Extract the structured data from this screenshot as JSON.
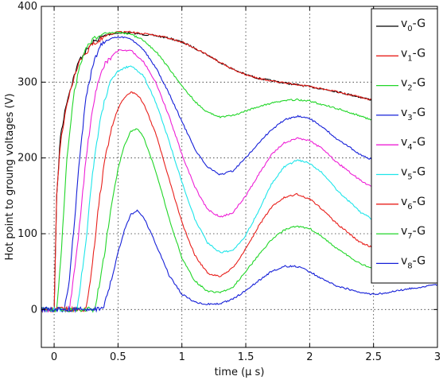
{
  "chart_data": {
    "type": "line",
    "xlabel": "time (μ s)",
    "ylabel": "Hot point to groung voltages (V)",
    "xlim": [
      -0.1,
      3.0
    ],
    "ylim": [
      -50,
      400
    ],
    "xticks": [
      0,
      0.5,
      1,
      1.5,
      2,
      2.5,
      3
    ],
    "xtick_labels": [
      "0",
      "0.5",
      "1",
      "1.5",
      "2",
      "2.5",
      "3"
    ],
    "yticks": [
      0,
      100,
      200,
      300,
      400
    ],
    "ytick_labels": [
      "0",
      "100",
      "200",
      "300",
      "400"
    ],
    "grid": true,
    "legend_position": "top-right",
    "series": [
      {
        "name": "v0-G",
        "label_main": "v",
        "label_sub": "0",
        "label_suffix": "-G",
        "color": "#000000",
        "x": [
          -0.1,
          0,
          0.02,
          0.05,
          0.1,
          0.15,
          0.2,
          0.3,
          0.4,
          0.5,
          0.6,
          0.7,
          0.8,
          0.9,
          1.0,
          1.1,
          1.2,
          1.3,
          1.4,
          1.5,
          1.6,
          1.8,
          2.0,
          2.2,
          2.4,
          2.6,
          2.8,
          3.0
        ],
        "y": [
          0,
          0,
          150,
          230,
          275,
          305,
          330,
          352,
          362,
          365,
          365,
          363,
          361,
          358,
          353,
          345,
          336,
          326,
          317,
          310,
          305,
          299,
          294,
          288,
          280,
          272,
          262,
          252
        ]
      },
      {
        "name": "v1-G",
        "label_main": "v",
        "label_sub": "1",
        "label_suffix": "-G",
        "color": "#e8201c",
        "x": [
          -0.1,
          0,
          0.02,
          0.05,
          0.1,
          0.15,
          0.2,
          0.3,
          0.4,
          0.5,
          0.6,
          0.7,
          0.8,
          0.9,
          1.0,
          1.1,
          1.2,
          1.3,
          1.4,
          1.5,
          1.6,
          1.8,
          2.0,
          2.2,
          2.4,
          2.6,
          2.8,
          3.0
        ],
        "y": [
          0,
          0,
          150,
          220,
          272,
          302,
          328,
          350,
          361,
          366,
          366,
          364,
          362,
          358,
          353,
          345,
          336,
          326,
          317,
          310,
          305,
          299,
          294,
          288,
          280,
          272,
          262,
          252
        ]
      },
      {
        "name": "v2-G",
        "label_main": "v",
        "label_sub": "2",
        "label_suffix": "-G",
        "color": "#21d628",
        "x": [
          -0.1,
          0.02,
          0.05,
          0.1,
          0.15,
          0.2,
          0.25,
          0.3,
          0.4,
          0.5,
          0.6,
          0.7,
          0.8,
          0.9,
          1.0,
          1.1,
          1.2,
          1.3,
          1.4,
          1.5,
          1.6,
          1.8,
          1.9,
          2.0,
          2.2,
          2.4,
          2.6,
          2.8,
          3.0
        ],
        "y": [
          0,
          0,
          60,
          200,
          280,
          320,
          345,
          357,
          365,
          366,
          363,
          355,
          340,
          318,
          295,
          275,
          260,
          254,
          256,
          262,
          268,
          276,
          277,
          275,
          266,
          255,
          243,
          232,
          222
        ]
      },
      {
        "name": "v3-G",
        "label_main": "v",
        "label_sub": "3",
        "label_suffix": "-G",
        "color": "#1620d8",
        "x": [
          -0.1,
          0.08,
          0.12,
          0.2,
          0.25,
          0.3,
          0.35,
          0.4,
          0.5,
          0.6,
          0.7,
          0.8,
          0.9,
          1.0,
          1.1,
          1.2,
          1.3,
          1.4,
          1.5,
          1.6,
          1.7,
          1.8,
          1.9,
          2.0,
          2.1,
          2.2,
          2.4,
          2.6,
          2.8,
          3.0
        ],
        "y": [
          0,
          0,
          40,
          200,
          280,
          320,
          345,
          355,
          360,
          357,
          343,
          318,
          285,
          248,
          212,
          188,
          178,
          183,
          200,
          220,
          237,
          250,
          255,
          252,
          241,
          227,
          204,
          190,
          182,
          176
        ]
      },
      {
        "name": "v4-G",
        "label_main": "v",
        "label_sub": "4",
        "label_suffix": "-G",
        "color": "#ee20d6",
        "x": [
          -0.1,
          0.12,
          0.18,
          0.25,
          0.3,
          0.35,
          0.4,
          0.5,
          0.6,
          0.7,
          0.8,
          0.9,
          1.0,
          1.1,
          1.2,
          1.3,
          1.4,
          1.5,
          1.6,
          1.7,
          1.8,
          1.9,
          2.0,
          2.1,
          2.2,
          2.4,
          2.6,
          2.8,
          3.0
        ],
        "y": [
          0,
          0,
          80,
          200,
          265,
          305,
          325,
          342,
          342,
          327,
          298,
          255,
          205,
          162,
          132,
          122,
          128,
          150,
          178,
          204,
          220,
          226,
          223,
          212,
          196,
          170,
          152,
          140,
          134
        ]
      },
      {
        "name": "v5-G",
        "label_main": "v",
        "label_sub": "5",
        "label_suffix": "-G",
        "color": "#1ee5ea",
        "x": [
          -0.1,
          0.18,
          0.25,
          0.3,
          0.35,
          0.4,
          0.45,
          0.5,
          0.6,
          0.7,
          0.8,
          0.9,
          1.0,
          1.1,
          1.2,
          1.3,
          1.4,
          1.5,
          1.6,
          1.7,
          1.8,
          1.9,
          2.0,
          2.1,
          2.2,
          2.4,
          2.6,
          2.8,
          3.0
        ],
        "y": [
          0,
          0,
          90,
          180,
          240,
          280,
          303,
          315,
          322,
          308,
          272,
          222,
          168,
          120,
          88,
          75,
          78,
          98,
          130,
          165,
          188,
          197,
          193,
          180,
          160,
          128,
          108,
          98,
          94
        ]
      },
      {
        "name": "v6-G",
        "label_main": "v",
        "label_sub": "6",
        "label_suffix": "-G",
        "color": "#e8201c",
        "x": [
          -0.1,
          0.25,
          0.3,
          0.35,
          0.4,
          0.45,
          0.5,
          0.55,
          0.6,
          0.65,
          0.7,
          0.8,
          0.9,
          1.0,
          1.1,
          1.2,
          1.3,
          1.4,
          1.5,
          1.6,
          1.7,
          1.8,
          1.9,
          2.0,
          2.1,
          2.2,
          2.4,
          2.6,
          2.8,
          3.0
        ],
        "y": [
          0,
          0,
          60,
          140,
          200,
          240,
          265,
          280,
          287,
          284,
          272,
          230,
          172,
          115,
          72,
          48,
          43,
          55,
          80,
          110,
          135,
          148,
          152,
          146,
          132,
          115,
          88,
          75,
          68,
          64
        ]
      },
      {
        "name": "v7-G",
        "label_main": "v",
        "label_sub": "7",
        "label_suffix": "-G",
        "color": "#21d628",
        "x": [
          -0.1,
          0.32,
          0.4,
          0.45,
          0.5,
          0.55,
          0.6,
          0.65,
          0.7,
          0.8,
          0.9,
          1.0,
          1.1,
          1.2,
          1.3,
          1.4,
          1.5,
          1.6,
          1.7,
          1.8,
          1.9,
          2.0,
          2.1,
          2.2,
          2.4,
          2.6,
          2.8,
          3.0
        ],
        "y": [
          0,
          0,
          80,
          140,
          185,
          217,
          235,
          238,
          228,
          180,
          120,
          68,
          38,
          24,
          22,
          30,
          50,
          72,
          92,
          105,
          110,
          107,
          96,
          82,
          60,
          48,
          43,
          40
        ]
      },
      {
        "name": "v8-G",
        "label_main": "v",
        "label_sub": "8",
        "label_suffix": "-G",
        "color": "#1620d8",
        "x": [
          -0.1,
          0.38,
          0.45,
          0.5,
          0.55,
          0.6,
          0.65,
          0.7,
          0.8,
          0.9,
          1.0,
          1.1,
          1.2,
          1.3,
          1.4,
          1.5,
          1.6,
          1.7,
          1.8,
          1.9,
          2.0,
          2.1,
          2.2,
          2.4,
          2.5,
          2.6,
          2.8,
          3.0
        ],
        "y": [
          0,
          0,
          40,
          75,
          105,
          125,
          130,
          122,
          85,
          45,
          20,
          10,
          7,
          8,
          14,
          25,
          38,
          50,
          57,
          57,
          50,
          40,
          32,
          22,
          20,
          22,
          28,
          33
        ]
      }
    ]
  }
}
